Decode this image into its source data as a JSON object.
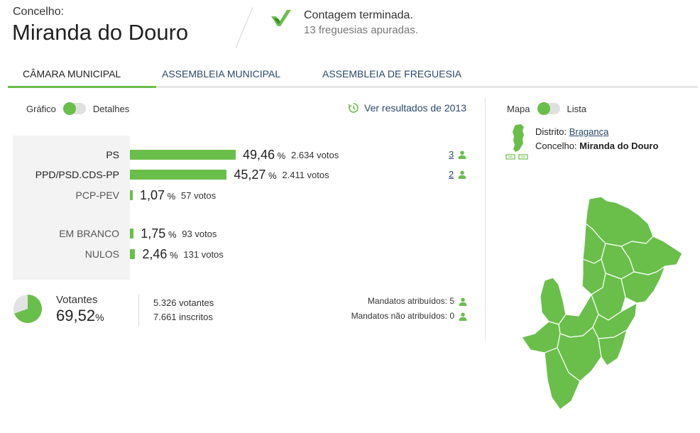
{
  "header": {
    "label": "Concelho:",
    "title": "Miranda do Douro",
    "status_main": "Contagem terminada.",
    "status_sub": "13 freguesias apuradas."
  },
  "tabs": [
    {
      "label": "CÂMARA MUNICIPAL",
      "active": true
    },
    {
      "label": "ASSEMBLEIA MUNICIPAL",
      "active": false
    },
    {
      "label": "ASSEMBLEIA DE FREGUESIA",
      "active": false
    }
  ],
  "view_toggle": {
    "left": "Gráfico",
    "right": "Detalhes"
  },
  "previous_link": "Ver resultados de 2013",
  "results": [
    {
      "party": "PS",
      "pct": "49,46",
      "pct_value": 49.46,
      "votes": "2.634 votos",
      "mandates": "3"
    },
    {
      "party": "PPD/PSD.CDS-PP",
      "pct": "45,27",
      "pct_value": 45.27,
      "votes": "2.411 votos",
      "mandates": "2"
    },
    {
      "party": "PCP-PEV",
      "pct": "1,07",
      "pct_value": 1.07,
      "votes": "57 votos",
      "mandates": ""
    }
  ],
  "others": [
    {
      "party": "EM BRANCO",
      "pct": "1,75",
      "pct_value": 1.75,
      "votes": "93 votos"
    },
    {
      "party": "NULOS",
      "pct": "2,46",
      "pct_value": 2.46,
      "votes": "131 votos"
    }
  ],
  "pct_symbol": "%",
  "turnout": {
    "label": "Votantes",
    "value": "69,52",
    "fraction": 0.6952,
    "voters": "5.326 votantes",
    "registered": "7.661 inscritos"
  },
  "seats": {
    "assigned": "Mandatos atribuídos: 5",
    "unassigned": "Mandatos não atribuídos: 0"
  },
  "map_toggle": {
    "left": "Mapa",
    "right": "Lista"
  },
  "location": {
    "district_label": "Distrito:",
    "district": "Bragança",
    "municipality_label": "Concelho:",
    "municipality": "Miranda do Douro"
  },
  "colors": {
    "accent": "#6abf4b",
    "link": "#2a4a6b",
    "panel": "#f3f3f3"
  }
}
